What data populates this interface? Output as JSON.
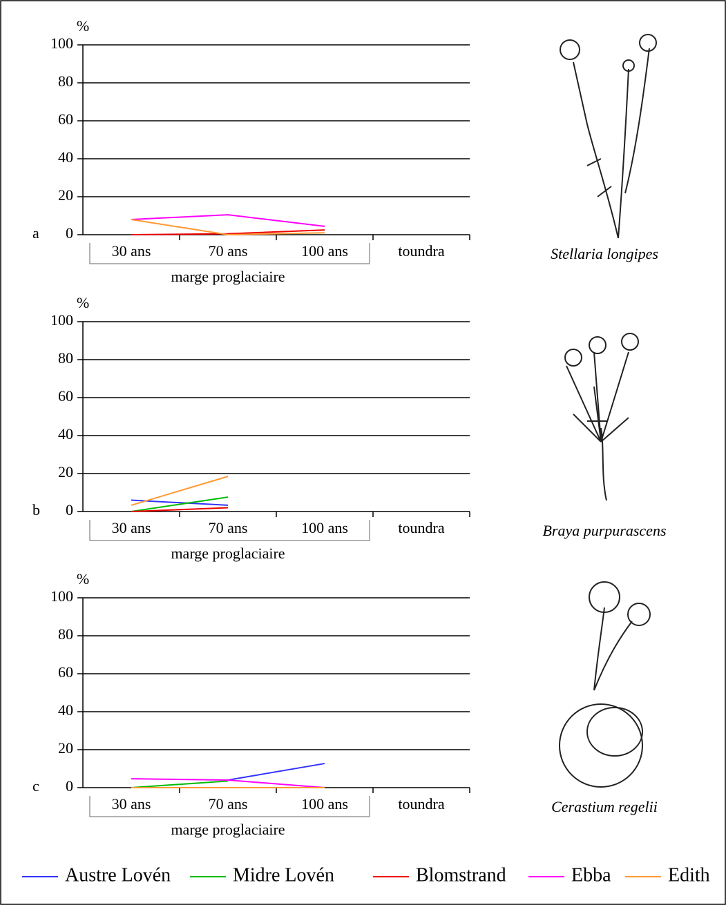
{
  "chart_data": [
    {
      "type": "line",
      "label": "a",
      "ylabel": "%",
      "caption": "Stellaria longipes",
      "group_label": "marge proglaciaire",
      "categories": [
        "30 ans",
        "70 ans",
        "100 ans",
        "toundra"
      ],
      "ylim": [
        0,
        100
      ],
      "yticks": [
        0,
        20,
        40,
        60,
        80,
        100
      ],
      "grid": true,
      "series": [
        {
          "values": [
            null,
            null,
            null,
            null
          ]
        },
        {
          "values": [
            null,
            null,
            null,
            null
          ]
        },
        {
          "values": [
            0,
            0.5,
            2.5,
            null
          ]
        },
        {
          "values": [
            8,
            10.5,
            4.4,
            null
          ]
        },
        {
          "values": [
            8,
            0,
            1,
            null
          ]
        }
      ]
    },
    {
      "type": "line",
      "label": "b",
      "ylabel": "%",
      "caption": "Braya purpurascens",
      "group_label": "marge proglaciaire",
      "categories": [
        "30 ans",
        "70 ans",
        "100 ans",
        "toundra"
      ],
      "ylim": [
        0,
        100
      ],
      "yticks": [
        0,
        20,
        40,
        60,
        80,
        100
      ],
      "grid": true,
      "series": [
        {
          "values": [
            6,
            3.3,
            null,
            null
          ]
        },
        {
          "values": [
            0,
            7.6,
            null,
            null
          ]
        },
        {
          "values": [
            0,
            2,
            null,
            null
          ]
        },
        {
          "values": [
            null,
            null,
            null,
            null
          ]
        },
        {
          "values": [
            3.3,
            18.5,
            null,
            null
          ]
        }
      ]
    },
    {
      "type": "line",
      "label": "c",
      "ylabel": "%",
      "caption": "Cerastium regelii",
      "group_label": "marge proglaciaire",
      "categories": [
        "30 ans",
        "70 ans",
        "100 ans",
        "toundra"
      ],
      "ylim": [
        0,
        100
      ],
      "yticks": [
        0,
        20,
        40,
        60,
        80,
        100
      ],
      "grid": true,
      "series": [
        {
          "values": [
            null,
            4,
            12.7,
            null
          ]
        },
        {
          "values": [
            0,
            3.5,
            null,
            null
          ]
        },
        {
          "values": [
            null,
            null,
            null,
            null
          ]
        },
        {
          "values": [
            4.7,
            4,
            0,
            null
          ]
        },
        {
          "values": [
            0,
            0,
            0,
            null
          ]
        }
      ]
    }
  ],
  "legend": {
    "position": "bottom",
    "entries": [
      {
        "name": "Austre Lovén",
        "color": "#3333ff"
      },
      {
        "name": "Midre Lovén",
        "color": "#00bb00"
      },
      {
        "name": "Blomstrand",
        "color": "#ee0000"
      },
      {
        "name": "Ebba",
        "color": "#ff00ff"
      },
      {
        "name": "Edith",
        "color": "#ff9933"
      }
    ]
  }
}
